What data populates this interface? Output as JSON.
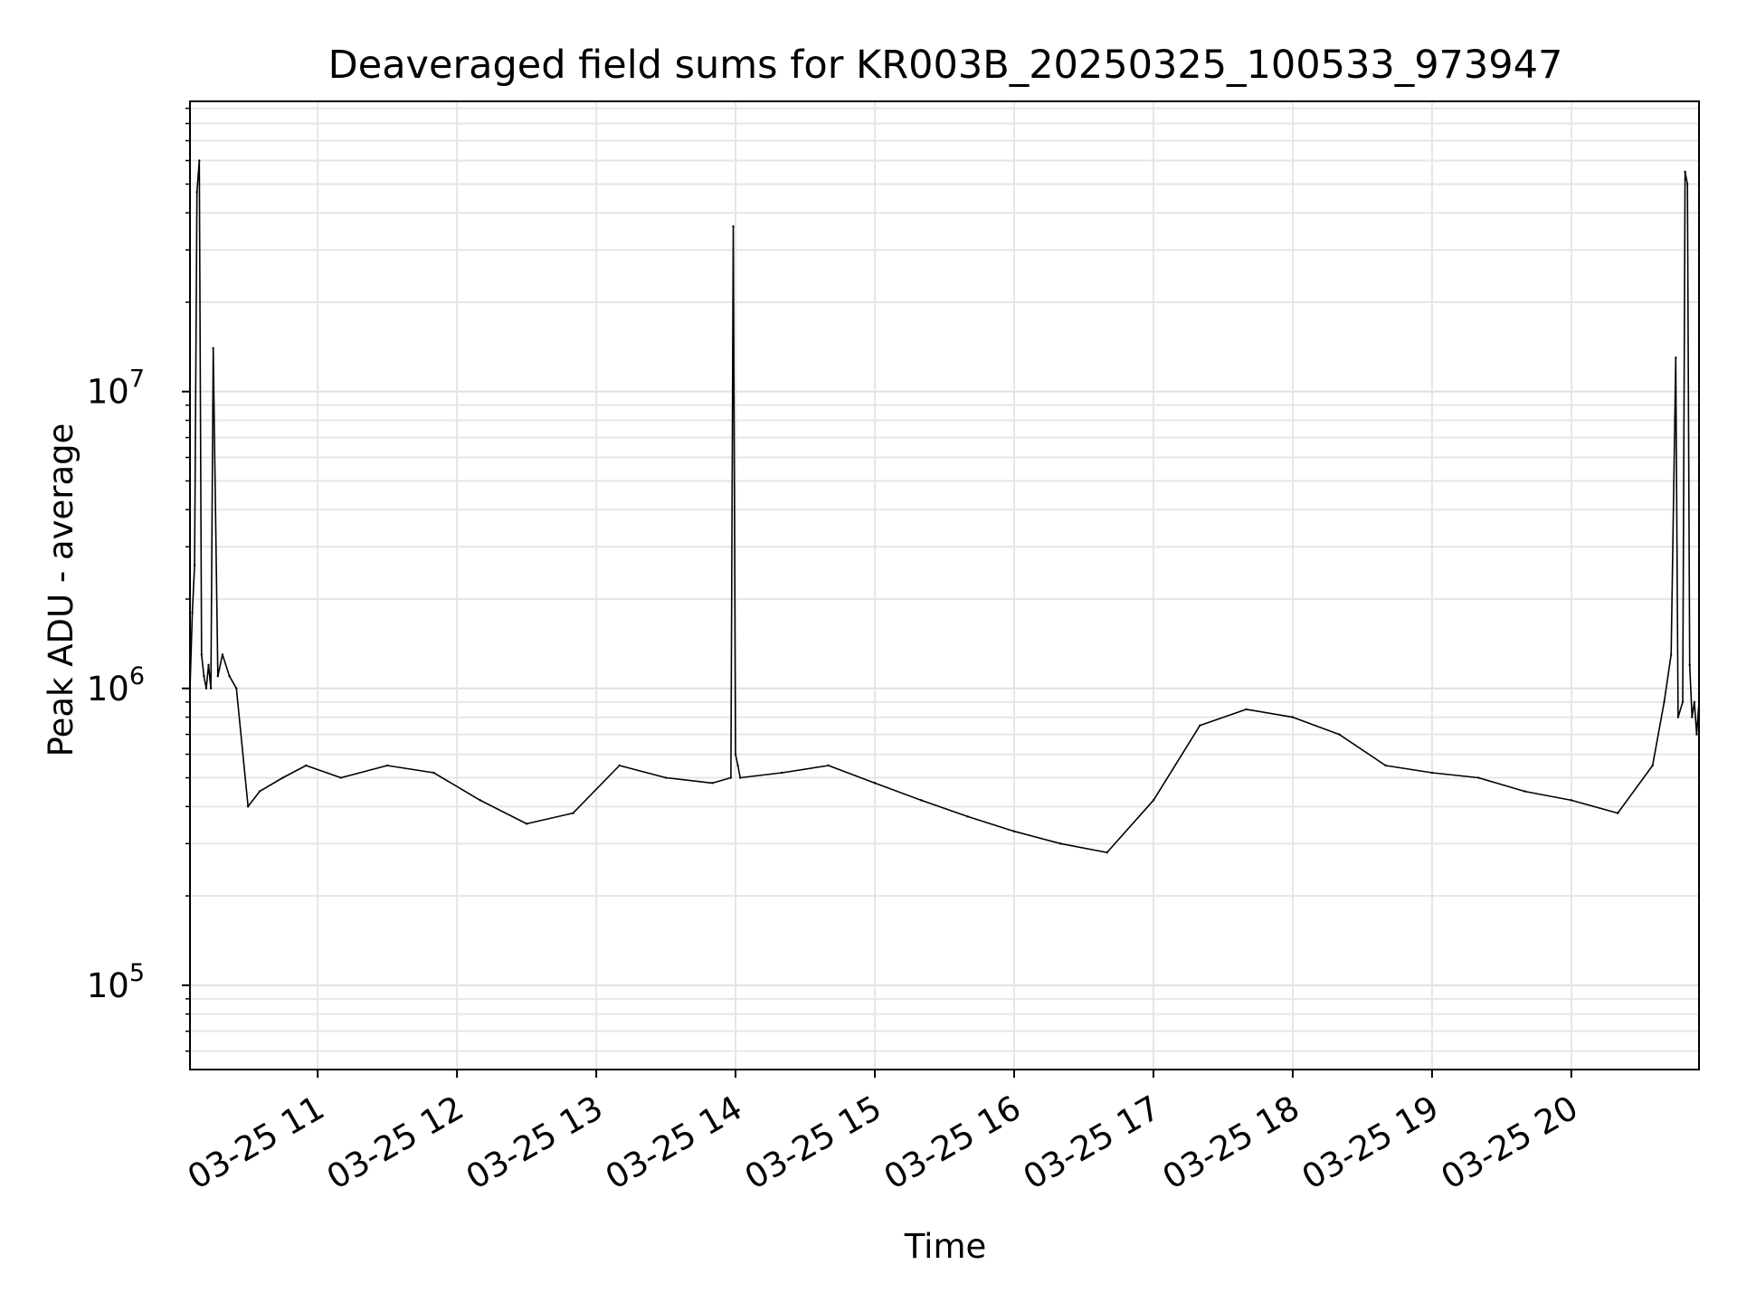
{
  "chart_data": {
    "type": "line",
    "title": "Deaveraged field sums for KR003B_20250325_100533_973947",
    "xlabel": "Time",
    "ylabel": "Peak ADU - average",
    "y_scale": "log",
    "x_tick_labels": [
      "03-25 11",
      "03-25 12",
      "03-25 13",
      "03-25 14",
      "03-25 15",
      "03-25 16",
      "03-25 17",
      "03-25 18",
      "03-25 19",
      "03-25 20"
    ],
    "y_tick_labels": [
      {
        "value": 100000,
        "base": "10",
        "exp": "5"
      },
      {
        "value": 1000000,
        "base": "10",
        "exp": "6"
      },
      {
        "value": 10000000,
        "base": "10",
        "exp": "7"
      }
    ],
    "xlim": [
      "2025-03-25 10:05",
      "2025-03-25 20:55"
    ],
    "ylim": [
      52000,
      95000000
    ],
    "grid": true,
    "series": [
      {
        "color": "#000000",
        "x": [
          "2025-03-25 10:05",
          "2025-03-25 10:06",
          "2025-03-25 10:07",
          "2025-03-25 10:08",
          "2025-03-25 10:09",
          "2025-03-25 10:10",
          "2025-03-25 10:11",
          "2025-03-25 10:12",
          "2025-03-25 10:13",
          "2025-03-25 10:14",
          "2025-03-25 10:15",
          "2025-03-25 10:17",
          "2025-03-25 10:19",
          "2025-03-25 10:22",
          "2025-03-25 10:25",
          "2025-03-25 10:30",
          "2025-03-25 10:35",
          "2025-03-25 10:45",
          "2025-03-25 10:55",
          "2025-03-25 11:10",
          "2025-03-25 11:30",
          "2025-03-25 11:50",
          "2025-03-25 12:10",
          "2025-03-25 12:30",
          "2025-03-25 12:50",
          "2025-03-25 13:10",
          "2025-03-25 13:30",
          "2025-03-25 13:50",
          "2025-03-25 13:58",
          "2025-03-25 13:59",
          "2025-03-25 14:00",
          "2025-03-25 14:01",
          "2025-03-25 14:02",
          "2025-03-25 14:20",
          "2025-03-25 14:40",
          "2025-03-25 15:00",
          "2025-03-25 15:20",
          "2025-03-25 15:40",
          "2025-03-25 16:00",
          "2025-03-25 16:20",
          "2025-03-25 16:40",
          "2025-03-25 17:00",
          "2025-03-25 17:20",
          "2025-03-25 17:40",
          "2025-03-25 18:00",
          "2025-03-25 18:20",
          "2025-03-25 18:40",
          "2025-03-25 19:00",
          "2025-03-25 19:20",
          "2025-03-25 19:40",
          "2025-03-25 20:00",
          "2025-03-25 20:20",
          "2025-03-25 20:35",
          "2025-03-25 20:40",
          "2025-03-25 20:43",
          "2025-03-25 20:45",
          "2025-03-25 20:46",
          "2025-03-25 20:48",
          "2025-03-25 20:49",
          "2025-03-25 20:50",
          "2025-03-25 20:51",
          "2025-03-25 20:52",
          "2025-03-25 20:53",
          "2025-03-25 20:54",
          "2025-03-25 20:55"
        ],
        "values": [
          1000000,
          1800000,
          2600000,
          47000000,
          60000000,
          1300000,
          1100000,
          1000000,
          1200000,
          1000000,
          14000000,
          1100000,
          1300000,
          1100000,
          1000000,
          400000,
          450000,
          500000,
          550000,
          500000,
          550000,
          520000,
          420000,
          350000,
          380000,
          550000,
          500000,
          480000,
          500000,
          36000000,
          600000,
          550000,
          500000,
          520000,
          550000,
          480000,
          420000,
          370000,
          330000,
          300000,
          280000,
          420000,
          750000,
          850000,
          800000,
          700000,
          550000,
          520000,
          500000,
          450000,
          420000,
          380000,
          550000,
          900000,
          1300000,
          13000000,
          800000,
          900000,
          55000000,
          50000000,
          1200000,
          800000,
          900000,
          700000,
          900000
        ]
      }
    ]
  }
}
